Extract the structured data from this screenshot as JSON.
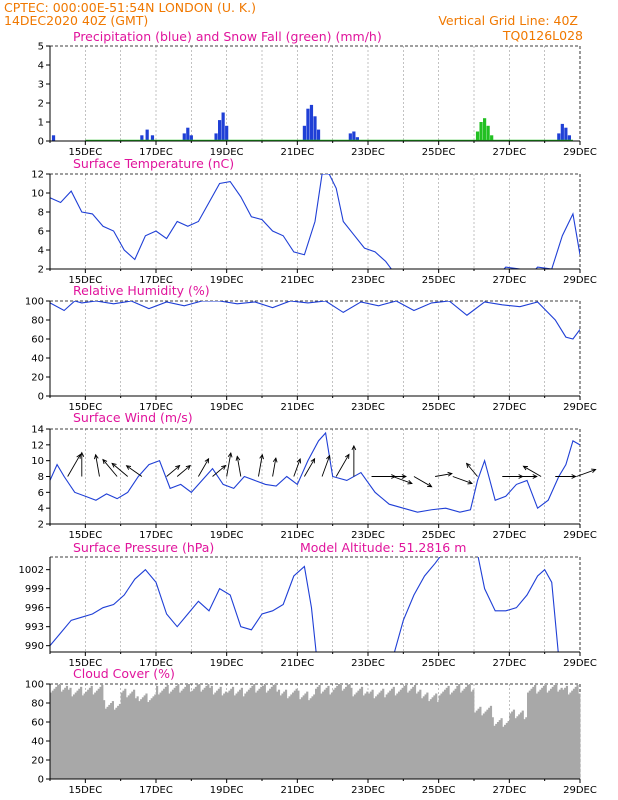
{
  "header": {
    "line1_left": "CPTEC:   000:00E-51:54N   LONDON (U. K.)",
    "line2_left": "14DEC2020 40Z (GMT)",
    "grid_note": "Vertical Grid Line: 40Z",
    "code": "TQ0126L028",
    "color": "#f07800"
  },
  "colors": {
    "title": "#e0149c",
    "line": "#1f3fd6",
    "rain": "#1f3fd6",
    "snow": "#22c022",
    "cloud": "#a8a8a8"
  },
  "date_ticks": [
    "15DEC",
    "17DEC",
    "19DEC",
    "21DEC",
    "23DEC",
    "25DEC",
    "27DEC",
    "29DEC"
  ],
  "chart_data": [
    {
      "type": "bar",
      "title": "Precipitation (blue) and Snow Fall (green) (mm/h)",
      "ylim": [
        0,
        5
      ],
      "yticks": [
        0,
        1,
        2,
        3,
        4,
        5
      ],
      "series": [
        {
          "name": "Precipitation",
          "color": "#1f3fd6",
          "points": [
            [
              14.1,
              0.3
            ],
            [
              16.6,
              0.3
            ],
            [
              16.75,
              0.6
            ],
            [
              16.9,
              0.3
            ],
            [
              17.8,
              0.4
            ],
            [
              17.9,
              0.7
            ],
            [
              18.0,
              0.3
            ],
            [
              18.7,
              0.4
            ],
            [
              18.8,
              1.1
            ],
            [
              18.9,
              1.5
            ],
            [
              19.0,
              0.8
            ],
            [
              21.2,
              0.8
            ],
            [
              21.3,
              1.7
            ],
            [
              21.4,
              1.9
            ],
            [
              21.5,
              1.3
            ],
            [
              21.6,
              0.6
            ],
            [
              22.5,
              0.4
            ],
            [
              22.6,
              0.5
            ],
            [
              22.7,
              0.2
            ],
            [
              28.4,
              0.4
            ],
            [
              28.5,
              0.9
            ],
            [
              28.6,
              0.7
            ],
            [
              28.7,
              0.3
            ]
          ]
        },
        {
          "name": "Snow Fall",
          "color": "#22c022",
          "points": [
            [
              26.1,
              0.5
            ],
            [
              26.2,
              1.0
            ],
            [
              26.3,
              1.2
            ],
            [
              26.4,
              0.8
            ],
            [
              26.5,
              0.3
            ]
          ]
        }
      ]
    },
    {
      "type": "line",
      "title": "Surface Temperature (nC)",
      "ylim": [
        2,
        12
      ],
      "yticks": [
        2,
        4,
        6,
        8,
        10,
        12
      ],
      "x": [
        14.0,
        14.3,
        14.6,
        14.9,
        15.2,
        15.5,
        15.8,
        16.1,
        16.4,
        16.7,
        17.0,
        17.3,
        17.6,
        17.9,
        18.2,
        18.5,
        18.8,
        19.1,
        19.4,
        19.7,
        20.0,
        20.3,
        20.6,
        20.9,
        21.2,
        21.5,
        21.7,
        21.9,
        22.1,
        22.3,
        22.6,
        22.9,
        23.2,
        23.5,
        23.7,
        26.8,
        26.9,
        27.7,
        27.8,
        28.2,
        28.5,
        28.8,
        29.0
      ],
      "y": [
        9.5,
        9.0,
        10.2,
        8.0,
        7.8,
        6.5,
        6.0,
        4.0,
        3.0,
        5.5,
        6.0,
        5.2,
        7.0,
        6.5,
        7.0,
        9.0,
        11.0,
        11.2,
        9.6,
        7.5,
        7.2,
        6.0,
        5.5,
        3.8,
        3.5,
        7.0,
        12.0,
        12.0,
        10.5,
        7.0,
        5.6,
        4.2,
        3.8,
        2.8,
        1.8,
        1.8,
        2.2,
        1.8,
        2.2,
        2.0,
        5.5,
        7.8,
        3.5
      ]
    },
    {
      "type": "line",
      "title": "Relative Humidity (%)",
      "ylim": [
        0,
        100
      ],
      "yticks": [
        0,
        20,
        40,
        60,
        80,
        100
      ],
      "x": [
        14.0,
        14.4,
        14.7,
        14.9,
        15.3,
        15.8,
        16.3,
        16.8,
        17.3,
        17.8,
        18.3,
        18.8,
        19.3,
        19.8,
        20.3,
        20.8,
        21.3,
        21.8,
        22.3,
        22.8,
        23.3,
        23.8,
        24.3,
        24.8,
        25.3,
        25.8,
        26.3,
        26.8,
        27.3,
        27.8,
        28.3,
        28.6,
        28.8,
        29.0
      ],
      "y": [
        98,
        90,
        100,
        98,
        100,
        97,
        100,
        92,
        99,
        95,
        100,
        100,
        97,
        99,
        93,
        100,
        98,
        100,
        88,
        99,
        95,
        100,
        90,
        98,
        100,
        85,
        99,
        96,
        94,
        99,
        80,
        62,
        60,
        70
      ]
    },
    {
      "type": "line",
      "title": "Surface Wind (m/s)",
      "ylim": [
        2,
        14
      ],
      "yticks": [
        2,
        4,
        6,
        8,
        10,
        12,
        14
      ],
      "x": [
        14.0,
        14.2,
        14.4,
        14.7,
        15.0,
        15.3,
        15.6,
        15.9,
        16.2,
        16.5,
        16.8,
        17.1,
        17.4,
        17.7,
        18.0,
        18.3,
        18.6,
        18.9,
        19.2,
        19.5,
        19.8,
        20.1,
        20.4,
        20.7,
        21.0,
        21.3,
        21.6,
        21.8,
        22.0,
        22.4,
        22.8,
        23.2,
        23.6,
        24.0,
        24.4,
        24.8,
        25.2,
        25.6,
        25.9,
        26.1,
        26.3,
        26.6,
        26.9,
        27.2,
        27.5,
        27.8,
        28.1,
        28.4,
        28.6,
        28.8,
        29.0
      ],
      "y": [
        7.5,
        9.5,
        8.0,
        6.0,
        5.5,
        5.0,
        5.8,
        5.2,
        6.0,
        8.0,
        9.5,
        10.0,
        6.5,
        7.0,
        6.0,
        7.5,
        9.0,
        7.0,
        6.5,
        8.0,
        7.5,
        7.0,
        6.8,
        8.0,
        7.0,
        10.0,
        12.5,
        13.5,
        8.0,
        7.5,
        8.5,
        6.0,
        4.5,
        4.0,
        3.5,
        3.8,
        4.0,
        3.5,
        3.8,
        7.5,
        10.0,
        5.0,
        5.5,
        7.0,
        7.5,
        4.0,
        5.0,
        8.0,
        9.5,
        12.5,
        12.0
      ]
    },
    {
      "type": "line",
      "title": "Surface Pressure (hPa)",
      "annotation": "Model Altitude: 51.2816 m",
      "ylim": [
        989,
        1004
      ],
      "yticks": [
        990,
        993,
        996,
        999,
        1002
      ],
      "x": [
        14.0,
        14.3,
        14.6,
        14.9,
        15.2,
        15.5,
        15.8,
        16.1,
        16.4,
        16.7,
        17.0,
        17.3,
        17.6,
        17.9,
        18.2,
        18.5,
        18.8,
        19.1,
        19.4,
        19.7,
        20.0,
        20.3,
        20.6,
        20.9,
        21.2,
        21.4,
        21.55
      ],
      "y": [
        990,
        992,
        994,
        994.5,
        995,
        996,
        996.5,
        998,
        1000.5,
        1002,
        1000,
        995,
        993,
        995,
        997,
        995.5,
        999,
        998,
        993,
        992.5,
        995,
        995.5,
        996.5,
        1001,
        1002.5,
        996,
        988
      ],
      "segment2_x": [
        23.7,
        24.0,
        24.3,
        24.6,
        24.9,
        25.1
      ],
      "segment2_y": [
        988,
        994,
        998,
        1001,
        1003,
        1004.5
      ],
      "segment3_x": [
        26.1,
        26.3,
        26.6,
        26.9,
        27.2,
        27.5,
        27.8,
        28.0,
        28.2,
        28.4
      ],
      "segment3_y": [
        1004.5,
        999,
        995.5,
        995.5,
        996,
        998,
        1001,
        1002,
        1000,
        988
      ]
    },
    {
      "type": "bar",
      "title": "Cloud Cover (%)",
      "ylim": [
        0,
        100
      ],
      "yticks": [
        0,
        20,
        40,
        60,
        80,
        100
      ],
      "x": [
        14.0,
        14.5,
        15.0,
        15.5,
        16.0,
        16.5,
        17.0,
        17.5,
        18.0,
        18.5,
        19.0,
        19.5,
        20.0,
        20.5,
        21.0,
        21.5,
        22.0,
        22.5,
        23.0,
        23.5,
        24.0,
        24.5,
        25.0,
        25.5,
        26.0,
        26.5,
        27.0,
        27.5,
        28.0,
        28.5,
        29.0
      ],
      "y": [
        96,
        92,
        94,
        78,
        90,
        85,
        94,
        96,
        97,
        93,
        92,
        95,
        96,
        90,
        88,
        94,
        97,
        92,
        90,
        93,
        95,
        86,
        93,
        96,
        72,
        60,
        68,
        94,
        96,
        94,
        95
      ]
    }
  ]
}
